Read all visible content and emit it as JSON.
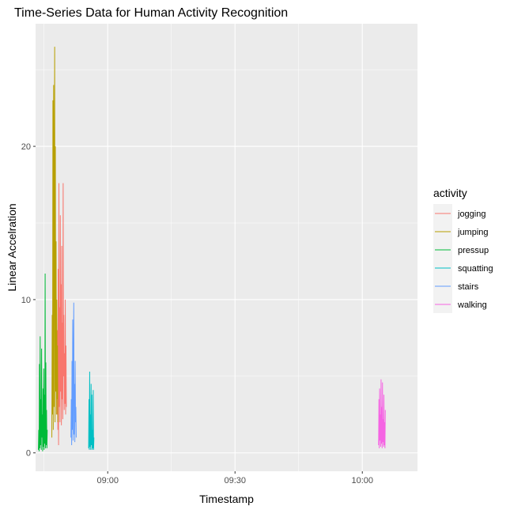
{
  "chart_data": {
    "type": "line",
    "title": "Time-Series Data for Human Activity Recognition",
    "xlabel": "Timestamp",
    "ylabel": "Linear Accelration",
    "xlim": [
      "08:43:00",
      "10:13:00"
    ],
    "ylim": [
      -1.2,
      28
    ],
    "x_ticks": [
      {
        "value": "09:00:00",
        "label": "09:00"
      },
      {
        "value": "09:30:00",
        "label": "09:30"
      },
      {
        "value": "10:00:00",
        "label": "10:00"
      }
    ],
    "y_ticks": [
      0,
      10,
      20
    ],
    "grid": true,
    "legend": {
      "title": "activity",
      "position": "right"
    },
    "series": [
      {
        "name": "jogging",
        "color": "#F8766D",
        "x": [
          "08:48:05",
          "08:48:10",
          "08:48:15",
          "08:48:20",
          "08:48:25",
          "08:48:30",
          "08:48:35",
          "08:48:40",
          "08:48:45",
          "08:48:50",
          "08:48:55",
          "08:49:00",
          "08:49:05",
          "08:49:10",
          "08:49:15",
          "08:49:20",
          "08:49:25",
          "08:49:30",
          "08:49:35",
          "08:49:40",
          "08:49:45",
          "08:49:50",
          "08:49:55",
          "08:50:00",
          "08:50:05",
          "08:50:10",
          "08:50:15"
        ],
        "values": [
          2.5,
          8.0,
          1.5,
          12.0,
          0.5,
          17.6,
          3.0,
          9.5,
          2.0,
          15.5,
          4.0,
          11.0,
          1.8,
          13.5,
          3.5,
          8.5,
          2.2,
          17.6,
          5.0,
          9.0,
          2.8,
          6.5,
          3.2,
          10.0,
          2.5,
          7.0,
          3.0
        ]
      },
      {
        "name": "jumping",
        "color": "#B79F00",
        "x": [
          "08:46:50",
          "08:46:55",
          "08:47:00",
          "08:47:05",
          "08:47:10",
          "08:47:15",
          "08:47:20",
          "08:47:25",
          "08:47:30",
          "08:47:35",
          "08:47:40",
          "08:47:45",
          "08:47:50",
          "08:47:55",
          "08:48:00",
          "08:48:05",
          "08:48:10",
          "08:48:15"
        ],
        "values": [
          1.0,
          9.0,
          2.5,
          23.0,
          1.5,
          24.0,
          3.0,
          17.0,
          26.5,
          2.0,
          20.0,
          4.0,
          13.8,
          2.5,
          10.0,
          3.5,
          7.0,
          2.0
        ]
      },
      {
        "name": "pressup",
        "color": "#00BA38",
        "x": [
          "08:43:40",
          "08:43:45",
          "08:43:50",
          "08:43:55",
          "08:44:00",
          "08:44:05",
          "08:44:10",
          "08:44:15",
          "08:44:20",
          "08:44:25",
          "08:44:30",
          "08:44:35",
          "08:44:40",
          "08:44:45",
          "08:44:50",
          "08:44:55",
          "08:45:00",
          "08:45:05",
          "08:45:10",
          "08:45:15",
          "08:45:20",
          "08:45:25",
          "08:45:30",
          "08:45:35",
          "08:45:40",
          "08:45:45"
        ],
        "values": [
          0.2,
          1.5,
          0.1,
          5.8,
          0.3,
          7.6,
          0.5,
          3.5,
          0.2,
          6.8,
          1.0,
          2.5,
          0.1,
          4.2,
          0.4,
          5.5,
          0.2,
          3.8,
          0.6,
          11.7,
          0.3,
          5.9,
          0.5,
          2.8,
          0.3,
          1.5
        ]
      },
      {
        "name": "squatting",
        "color": "#00BFC4",
        "x": [
          "08:55:30",
          "08:55:35",
          "08:55:40",
          "08:55:45",
          "08:55:50",
          "08:55:55",
          "08:56:00",
          "08:56:05",
          "08:56:10",
          "08:56:15",
          "08:56:20",
          "08:56:25",
          "08:56:30",
          "08:56:35",
          "08:56:40",
          "08:56:45"
        ],
        "values": [
          0.3,
          3.5,
          0.2,
          5.3,
          0.4,
          2.5,
          0.2,
          4.5,
          0.5,
          3.8,
          0.2,
          1.5,
          0.3,
          4.1,
          0.2,
          1.0
        ]
      },
      {
        "name": "stairs",
        "color": "#619CFF",
        "x": [
          "08:51:20",
          "08:51:25",
          "08:51:30",
          "08:51:35",
          "08:51:40",
          "08:51:45",
          "08:51:50",
          "08:51:55",
          "08:52:00",
          "08:52:05",
          "08:52:10",
          "08:52:15",
          "08:52:20",
          "08:52:25",
          "08:52:30",
          "08:52:35"
        ],
        "values": [
          1.0,
          3.5,
          0.5,
          6.0,
          1.5,
          8.7,
          0.8,
          5.5,
          9.8,
          1.2,
          4.5,
          0.7,
          6.0,
          2.0,
          3.0,
          1.0
        ]
      },
      {
        "name": "walking",
        "color": "#F564E3",
        "x": [
          "10:03:50",
          "10:03:55",
          "10:04:00",
          "10:04:05",
          "10:04:10",
          "10:04:15",
          "10:04:20",
          "10:04:25",
          "10:04:30",
          "10:04:35",
          "10:04:40",
          "10:04:45",
          "10:04:50",
          "10:04:55",
          "10:05:00",
          "10:05:05",
          "10:05:10",
          "10:05:15",
          "10:05:20",
          "10:05:25"
        ],
        "values": [
          0.5,
          3.5,
          0.3,
          4.2,
          0.8,
          2.5,
          0.4,
          4.8,
          0.6,
          3.0,
          0.3,
          4.6,
          0.7,
          2.2,
          0.4,
          3.8,
          0.5,
          2.0,
          0.3,
          2.8
        ]
      }
    ]
  }
}
